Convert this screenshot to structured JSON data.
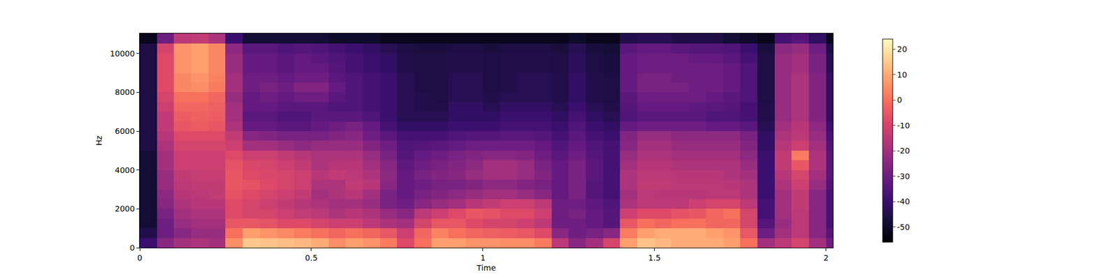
{
  "chart_data": {
    "type": "heatmap",
    "x_label": "Time",
    "y_label": "Hz",
    "xlim": [
      0,
      2.02
    ],
    "xticks": [
      0,
      0.5,
      1,
      1.5,
      2
    ],
    "ylim": [
      0,
      11025
    ],
    "yticks": [
      0,
      2000,
      4000,
      6000,
      8000,
      10000
    ],
    "grid": false,
    "color": "magma",
    "zlim": [
      -56,
      24
    ],
    "zticks": [
      -50,
      -40,
      -30,
      -20,
      -10,
      0,
      10,
      20
    ],
    "x_edges": [
      0,
      0.05,
      0.1,
      0.15,
      0.2,
      0.25,
      0.3,
      0.35,
      0.4,
      0.45,
      0.5,
      0.55,
      0.6,
      0.65,
      0.7,
      0.75,
      0.8,
      0.85,
      0.9,
      0.95,
      1.0,
      1.05,
      1.1,
      1.15,
      1.2,
      1.25,
      1.3,
      1.35,
      1.4,
      1.45,
      1.5,
      1.55,
      1.6,
      1.65,
      1.7,
      1.75,
      1.8,
      1.85,
      1.9,
      1.95,
      2.0,
      2.02
    ],
    "y_edges": [
      0,
      500,
      1000,
      1500,
      2000,
      2500,
      3000,
      3500,
      4000,
      4500,
      5000,
      5500,
      6000,
      6500,
      7000,
      7500,
      8000,
      8500,
      9000,
      9500,
      10000,
      10500,
      11025
    ],
    "z": [
      [
        -40,
        -25,
        -20,
        -18,
        -20,
        5,
        15,
        14,
        13,
        12,
        10,
        5,
        8,
        6,
        2,
        -8,
        0,
        8,
        8,
        6,
        6,
        5,
        5,
        2,
        -15,
        -25,
        -20,
        -10,
        8,
        14,
        12,
        10,
        10,
        10,
        8,
        0,
        -20,
        -15,
        -10,
        -20,
        -30
      ],
      [
        -45,
        -30,
        -25,
        -22,
        -22,
        0,
        8,
        6,
        4,
        2,
        0,
        -2,
        0,
        -2,
        -5,
        -12,
        -2,
        3,
        0,
        -2,
        -3,
        -4,
        -5,
        -8,
        -25,
        -30,
        -28,
        -25,
        2,
        8,
        10,
        10,
        10,
        8,
        6,
        -5,
        -30,
        -20,
        -15,
        -25,
        -35
      ],
      [
        -48,
        -30,
        -22,
        -20,
        -20,
        -5,
        -5,
        -6,
        -8,
        -8,
        -10,
        -12,
        -12,
        -15,
        -18,
        -20,
        -10,
        -5,
        -5,
        -8,
        -10,
        -10,
        -12,
        -15,
        -30,
        -30,
        -32,
        -35,
        -5,
        0,
        -2,
        0,
        0,
        -2,
        -2,
        -10,
        -35,
        -22,
        -15,
        -25,
        -38
      ],
      [
        -48,
        -28,
        -20,
        -18,
        -18,
        -8,
        -10,
        -10,
        -12,
        -14,
        -15,
        -18,
        -16,
        -18,
        -22,
        -25,
        -15,
        -12,
        -8,
        -5,
        -6,
        -8,
        -8,
        -12,
        -30,
        -28,
        -32,
        -35,
        -12,
        -8,
        -8,
        -6,
        -5,
        -2,
        0,
        -10,
        -38,
        -20,
        -15,
        -25,
        -38
      ],
      [
        -48,
        -25,
        -18,
        -16,
        -16,
        -8,
        -10,
        -12,
        -14,
        -16,
        -18,
        -20,
        -20,
        -22,
        -28,
        -30,
        -25,
        -22,
        -20,
        -16,
        -14,
        -12,
        -12,
        -15,
        -30,
        -30,
        -33,
        -36,
        -18,
        -15,
        -15,
        -15,
        -12,
        -10,
        -10,
        -15,
        -38,
        -20,
        -14,
        -25,
        -38
      ],
      [
        -48,
        -24,
        -16,
        -15,
        -14,
        -6,
        -8,
        -10,
        -12,
        -14,
        -20,
        -18,
        -16,
        -20,
        -28,
        -32,
        -28,
        -26,
        -24,
        -22,
        -20,
        -20,
        -22,
        -25,
        -32,
        -28,
        -35,
        -38,
        -20,
        -15,
        -16,
        -16,
        -16,
        -15,
        -15,
        -18,
        -40,
        -20,
        -14,
        -25,
        -38
      ],
      [
        -48,
        -22,
        -15,
        -14,
        -14,
        -5,
        -6,
        -8,
        -10,
        -12,
        -18,
        -18,
        -14,
        -16,
        -25,
        -32,
        -30,
        -28,
        -28,
        -26,
        -24,
        -24,
        -26,
        -28,
        -32,
        -28,
        -35,
        -38,
        -18,
        -14,
        -14,
        -15,
        -15,
        -15,
        -16,
        -18,
        -40,
        -18,
        -12,
        -22,
        -36
      ],
      [
        -48,
        -22,
        -14,
        -13,
        -13,
        -5,
        -8,
        -9,
        -10,
        -12,
        -16,
        -14,
        -15,
        -18,
        -24,
        -32,
        -28,
        -26,
        -25,
        -22,
        -20,
        -20,
        -22,
        -26,
        -32,
        -28,
        -34,
        -38,
        -18,
        -15,
        -15,
        -16,
        -16,
        -16,
        -18,
        -20,
        -40,
        -16,
        -10,
        -20,
        -35
      ],
      [
        -48,
        -20,
        -12,
        -12,
        -12,
        -6,
        -9,
        -10,
        -12,
        -14,
        -18,
        -16,
        -16,
        -20,
        -25,
        -33,
        -30,
        -28,
        -26,
        -24,
        -20,
        -20,
        -22,
        -28,
        -32,
        -28,
        -34,
        -38,
        -20,
        -16,
        -16,
        -18,
        -18,
        -18,
        -18,
        -22,
        -40,
        -14,
        -5,
        -18,
        -35
      ],
      [
        -48,
        -20,
        -12,
        -12,
        -12,
        -8,
        -12,
        -12,
        -14,
        -16,
        -18,
        -18,
        -18,
        -22,
        -28,
        -35,
        -32,
        -30,
        -28,
        -26,
        -25,
        -25,
        -26,
        -30,
        -34,
        -30,
        -35,
        -38,
        -22,
        -18,
        -18,
        -20,
        -20,
        -20,
        -20,
        -24,
        -40,
        -14,
        2,
        -18,
        -35
      ],
      [
        -46,
        -18,
        -10,
        -10,
        -10,
        -12,
        -20,
        -20,
        -22,
        -24,
        -22,
        -22,
        -22,
        -26,
        -30,
        -36,
        -35,
        -34,
        -32,
        -30,
        -30,
        -30,
        -30,
        -32,
        -36,
        -32,
        -36,
        -38,
        -25,
        -20,
        -20,
        -22,
        -22,
        -22,
        -22,
        -26,
        -42,
        -16,
        -12,
        -20,
        -36
      ],
      [
        -46,
        -16,
        -8,
        -8,
        -8,
        -14,
        -25,
        -26,
        -28,
        -28,
        -28,
        -26,
        -25,
        -30,
        -34,
        -38,
        -38,
        -38,
        -36,
        -35,
        -35,
        -34,
        -34,
        -35,
        -38,
        -34,
        -38,
        -40,
        -26,
        -22,
        -22,
        -24,
        -24,
        -24,
        -24,
        -28,
        -42,
        -18,
        -15,
        -22,
        -38
      ],
      [
        -46,
        -14,
        -5,
        -4,
        -5,
        -18,
        -32,
        -32,
        -34,
        -34,
        -32,
        -30,
        -28,
        -32,
        -38,
        -42,
        -42,
        -42,
        -40,
        -40,
        -40,
        -38,
        -38,
        -38,
        -40,
        -36,
        -40,
        -42,
        -32,
        -30,
        -30,
        -30,
        -30,
        -32,
        -32,
        -34,
        -44,
        -20,
        -16,
        -24,
        -40
      ],
      [
        -46,
        -14,
        -4,
        -3,
        -4,
        -20,
        -34,
        -34,
        -36,
        -36,
        -34,
        -34,
        -34,
        -36,
        -40,
        -44,
        -44,
        -44,
        -42,
        -42,
        -42,
        -40,
        -40,
        -40,
        -42,
        -38,
        -42,
        -44,
        -36,
        -34,
        -34,
        -34,
        -34,
        -36,
        -36,
        -38,
        -45,
        -22,
        -18,
        -26,
        -42
      ],
      [
        -46,
        -12,
        -2,
        -2,
        -3,
        -20,
        -32,
        -32,
        -34,
        -34,
        -34,
        -36,
        -36,
        -38,
        -40,
        -44,
        -45,
        -45,
        -42,
        -42,
        -44,
        -42,
        -42,
        -42,
        -44,
        -40,
        -44,
        -45,
        -35,
        -32,
        -32,
        -32,
        -33,
        -34,
        -35,
        -38,
        -45,
        -22,
        -18,
        -26,
        -42
      ],
      [
        -46,
        -10,
        0,
        0,
        -2,
        -22,
        -32,
        -30,
        -32,
        -30,
        -30,
        -34,
        -36,
        -38,
        -40,
        -44,
        -45,
        -46,
        -44,
        -44,
        -45,
        -44,
        -44,
        -44,
        -45,
        -42,
        -45,
        -46,
        -34,
        -30,
        -30,
        -30,
        -30,
        -32,
        -34,
        -36,
        -46,
        -22,
        -18,
        -26,
        -42
      ],
      [
        -46,
        -8,
        4,
        5,
        2,
        -20,
        -30,
        -28,
        -30,
        -26,
        -26,
        -32,
        -36,
        -38,
        -40,
        -44,
        -46,
        -46,
        -44,
        -44,
        -46,
        -45,
        -44,
        -44,
        -45,
        -42,
        -45,
        -46,
        -32,
        -28,
        -28,
        -28,
        -30,
        -30,
        -32,
        -36,
        -46,
        -22,
        -18,
        -26,
        -42
      ],
      [
        -46,
        -8,
        4,
        6,
        3,
        -20,
        -30,
        -30,
        -32,
        -30,
        -30,
        -34,
        -36,
        -38,
        -40,
        -44,
        -46,
        -46,
        -44,
        -44,
        -46,
        -45,
        -44,
        -44,
        -45,
        -42,
        -45,
        -46,
        -32,
        -28,
        -28,
        -30,
        -30,
        -30,
        -32,
        -36,
        -46,
        -22,
        -18,
        -26,
        -42
      ],
      [
        -46,
        -8,
        6,
        8,
        4,
        -22,
        -32,
        -32,
        -34,
        -32,
        -32,
        -35,
        -38,
        -40,
        -42,
        -45,
        -46,
        -46,
        -45,
        -45,
        -46,
        -45,
        -45,
        -45,
        -46,
        -43,
        -46,
        -47,
        -32,
        -30,
        -30,
        -30,
        -30,
        -30,
        -32,
        -36,
        -46,
        -22,
        -20,
        -28,
        -44
      ],
      [
        -46,
        -8,
        6,
        8,
        4,
        -22,
        -32,
        -32,
        -34,
        -32,
        -34,
        -36,
        -38,
        -40,
        -42,
        -45,
        -46,
        -46,
        -45,
        -45,
        -46,
        -45,
        -45,
        -45,
        -46,
        -43,
        -46,
        -47,
        -32,
        -30,
        -30,
        -30,
        -32,
        -32,
        -34,
        -38,
        -46,
        -22,
        -20,
        -28,
        -44
      ],
      [
        -46,
        -10,
        6,
        8,
        4,
        -24,
        -34,
        -34,
        -36,
        -35,
        -36,
        -38,
        -40,
        -42,
        -44,
        -46,
        -47,
        -47,
        -46,
        -46,
        -47,
        -46,
        -46,
        -46,
        -47,
        -44,
        -47,
        -48,
        -34,
        -32,
        -32,
        -34,
        -35,
        -35,
        -36,
        -40,
        -47,
        -24,
        -22,
        -30,
        -46
      ],
      [
        -52,
        -30,
        -15,
        -14,
        -18,
        -40,
        -48,
        -48,
        -48,
        -48,
        -48,
        -50,
        -50,
        -50,
        -52,
        -52,
        -52,
        -52,
        -52,
        -52,
        -52,
        -52,
        -52,
        -52,
        -52,
        -50,
        -52,
        -52,
        -45,
        -44,
        -44,
        -46,
        -46,
        -46,
        -48,
        -50,
        -52,
        -38,
        -35,
        -42,
        -52
      ]
    ]
  }
}
